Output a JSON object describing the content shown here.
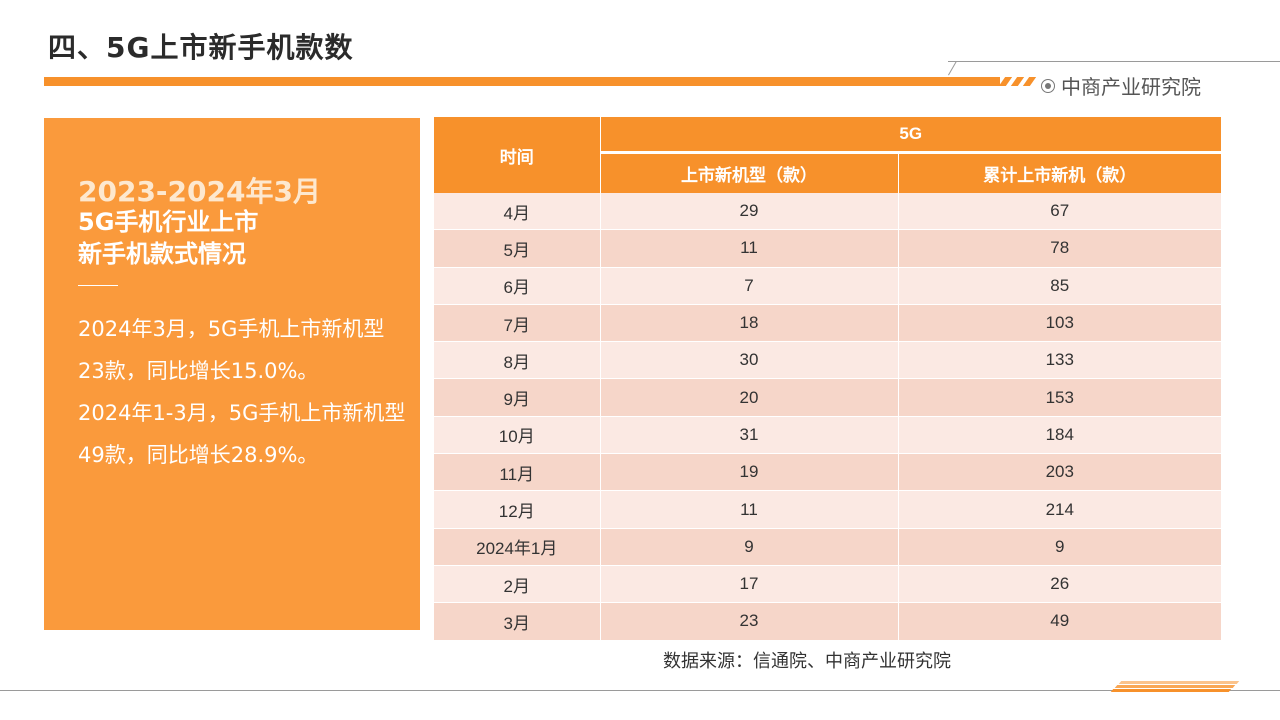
{
  "header": {
    "title": "四、5G上市新手机款数",
    "brand": "中商产业研究院",
    "brand_icon": "circle-dot-icon",
    "accent_color": "#f7912b"
  },
  "panel": {
    "heading": "2023-2024年3月",
    "subtitle_line1": "5G手机行业上市",
    "subtitle_line2": "新手机款式情况",
    "paragraph1": "2024年3月，5G手机上市新机型23款，同比增长15.0%。",
    "paragraph2": "2024年1-3月，5G手机上市新机型49款，同比增长28.9%。",
    "background_color": "#fa9a3c"
  },
  "table": {
    "header_time": "时间",
    "header_group": "5G",
    "header_new": "上市新机型（款）",
    "header_cumulative": "累计上市新机（款）",
    "rows": [
      {
        "time": "4月",
        "new": "29",
        "cumulative": "67"
      },
      {
        "time": "5月",
        "new": "11",
        "cumulative": "78"
      },
      {
        "time": "6月",
        "new": "7",
        "cumulative": "85"
      },
      {
        "time": "7月",
        "new": "18",
        "cumulative": "103"
      },
      {
        "time": "8月",
        "new": "30",
        "cumulative": "133"
      },
      {
        "time": "9月",
        "new": "20",
        "cumulative": "153"
      },
      {
        "time": "10月",
        "new": "31",
        "cumulative": "184"
      },
      {
        "time": "11月",
        "new": "19",
        "cumulative": "203"
      },
      {
        "time": "12月",
        "new": "11",
        "cumulative": "214"
      },
      {
        "time": "2024年1月",
        "new": "9",
        "cumulative": "9"
      },
      {
        "time": "2月",
        "new": "17",
        "cumulative": "26"
      },
      {
        "time": "3月",
        "new": "23",
        "cumulative": "49"
      }
    ]
  },
  "footer": {
    "source": "数据来源：信通院、中商产业研究院"
  }
}
